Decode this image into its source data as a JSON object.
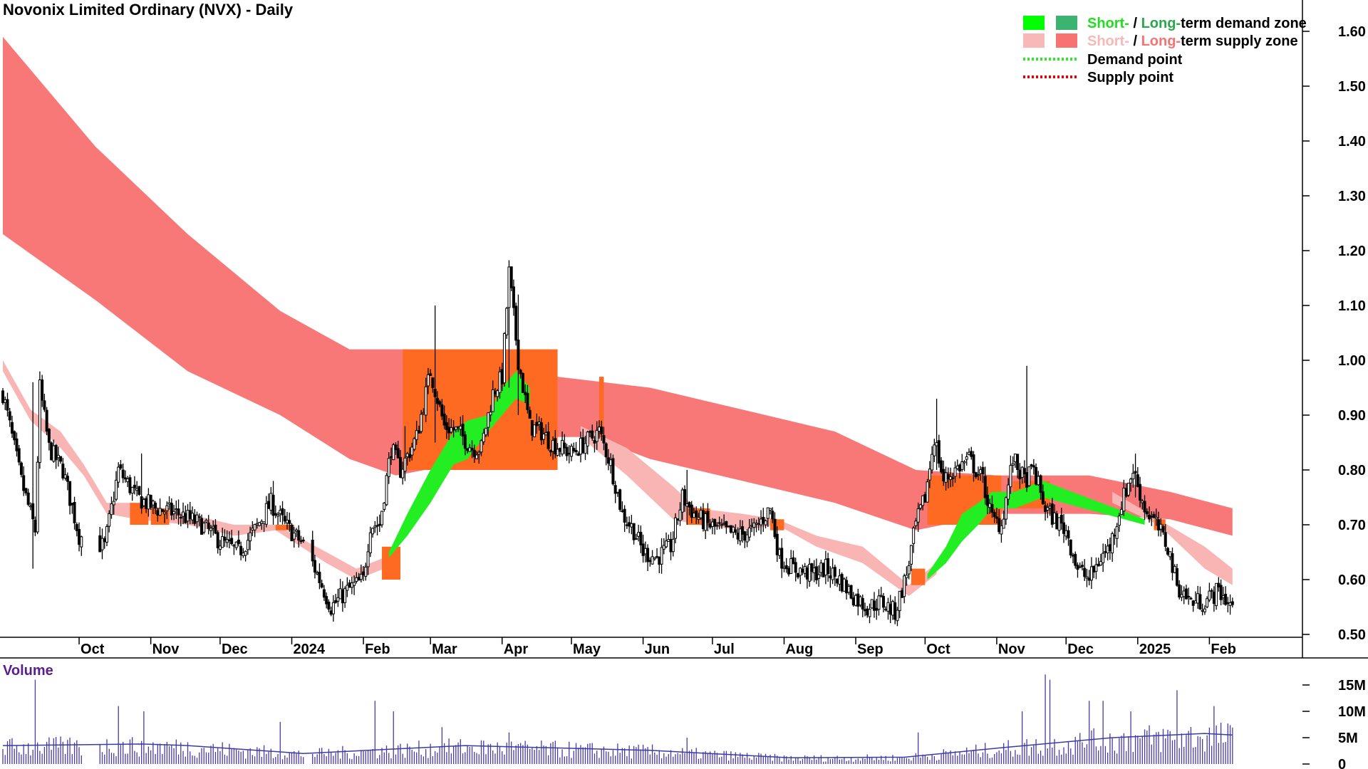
{
  "chart_data": {
    "type": "candlestick",
    "title": "Novonix Limited Ordinary (NVX) - Daily",
    "price_axis": {
      "ylim": [
        0.48,
        1.66
      ],
      "ticks": [
        1.6,
        1.5,
        1.4,
        1.3,
        1.2,
        1.1,
        1.0,
        0.9,
        0.8,
        0.7,
        0.6,
        0.5
      ],
      "tick_labels": [
        "1.60",
        "1.50",
        "1.40",
        "1.30",
        "1.20",
        "1.10",
        "1.00",
        "0.90",
        "0.80",
        "0.70",
        "0.60",
        "0.50"
      ]
    },
    "time_axis": {
      "labels": [
        {
          "label": "Oct",
          "d": 33
        },
        {
          "label": "Nov",
          "d": 64
        },
        {
          "label": "Dec",
          "d": 94
        },
        {
          "label": "2024",
          "d": 125
        },
        {
          "label": "Feb",
          "d": 156
        },
        {
          "label": "Mar",
          "d": 185
        },
        {
          "label": "Apr",
          "d": 216
        },
        {
          "label": "May",
          "d": 246
        },
        {
          "label": "Jun",
          "d": 277
        },
        {
          "label": "Jul",
          "d": 307
        },
        {
          "label": "Aug",
          "d": 338
        },
        {
          "label": "Sep",
          "d": 369
        },
        {
          "label": "Oct",
          "d": 399
        },
        {
          "label": "Nov",
          "d": 430
        },
        {
          "label": "Dec",
          "d": 460
        },
        {
          "label": "2025",
          "d": 491
        },
        {
          "label": "Feb",
          "d": 522
        }
      ],
      "d_range": [
        0,
        545
      ]
    },
    "price_keypoints": [
      [
        0,
        0.94
      ],
      [
        8,
        0.78
      ],
      [
        14,
        0.69
      ],
      [
        16,
        0.95
      ],
      [
        20,
        0.84
      ],
      [
        26,
        0.8
      ],
      [
        33,
        0.68
      ],
      [
        44,
        0.66
      ],
      [
        50,
        0.8
      ],
      [
        58,
        0.75
      ],
      [
        66,
        0.73
      ],
      [
        76,
        0.72
      ],
      [
        86,
        0.7
      ],
      [
        94,
        0.67
      ],
      [
        102,
        0.65
      ],
      [
        109,
        0.69
      ],
      [
        116,
        0.74
      ],
      [
        122,
        0.7
      ],
      [
        131,
        0.66
      ],
      [
        136,
        0.61
      ],
      [
        142,
        0.55
      ],
      [
        149,
        0.58
      ],
      [
        156,
        0.6
      ],
      [
        159,
        0.7
      ],
      [
        163,
        0.7
      ],
      [
        168,
        0.84
      ],
      [
        172,
        0.8
      ],
      [
        179,
        0.86
      ],
      [
        185,
        0.98
      ],
      [
        191,
        0.88
      ],
      [
        197,
        0.87
      ],
      [
        203,
        0.84
      ],
      [
        207,
        0.84
      ],
      [
        212,
        0.94
      ],
      [
        216,
        0.97
      ],
      [
        219,
        1.16
      ],
      [
        223,
        1.0
      ],
      [
        228,
        0.88
      ],
      [
        233,
        0.87
      ],
      [
        237,
        0.85
      ],
      [
        246,
        0.83
      ],
      [
        252,
        0.85
      ],
      [
        258,
        0.87
      ],
      [
        263,
        0.81
      ],
      [
        268,
        0.72
      ],
      [
        273,
        0.69
      ],
      [
        277,
        0.65
      ],
      [
        283,
        0.64
      ],
      [
        289,
        0.66
      ],
      [
        294,
        0.75
      ],
      [
        299,
        0.72
      ],
      [
        305,
        0.7
      ],
      [
        311,
        0.69
      ],
      [
        318,
        0.68
      ],
      [
        325,
        0.69
      ],
      [
        332,
        0.73
      ],
      [
        336,
        0.64
      ],
      [
        342,
        0.62
      ],
      [
        350,
        0.61
      ],
      [
        356,
        0.62
      ],
      [
        362,
        0.6
      ],
      [
        368,
        0.57
      ],
      [
        374,
        0.55
      ],
      [
        380,
        0.56
      ],
      [
        386,
        0.54
      ],
      [
        391,
        0.61
      ],
      [
        395,
        0.7
      ],
      [
        399,
        0.75
      ],
      [
        403,
        0.86
      ],
      [
        407,
        0.78
      ],
      [
        412,
        0.8
      ],
      [
        418,
        0.82
      ],
      [
        424,
        0.78
      ],
      [
        428,
        0.71
      ],
      [
        432,
        0.7
      ],
      [
        437,
        0.82
      ],
      [
        442,
        0.78
      ],
      [
        446,
        0.8
      ],
      [
        451,
        0.73
      ],
      [
        455,
        0.71
      ],
      [
        460,
        0.69
      ],
      [
        465,
        0.62
      ],
      [
        470,
        0.6
      ],
      [
        475,
        0.64
      ],
      [
        479,
        0.66
      ],
      [
        484,
        0.74
      ],
      [
        489,
        0.8
      ],
      [
        494,
        0.73
      ],
      [
        499,
        0.7
      ],
      [
        504,
        0.66
      ],
      [
        508,
        0.59
      ],
      [
        514,
        0.56
      ],
      [
        520,
        0.56
      ],
      [
        526,
        0.58
      ],
      [
        532,
        0.55
      ]
    ],
    "spikes": [
      [
        13,
        0.62,
        0.96
      ],
      [
        60,
        0.72,
        0.83
      ],
      [
        117,
        0.7,
        0.78
      ],
      [
        174,
        0.78,
        0.88
      ],
      [
        187,
        0.85,
        1.1
      ],
      [
        219,
        0.95,
        1.18
      ],
      [
        223,
        0.9,
        1.12
      ],
      [
        296,
        0.7,
        0.8
      ],
      [
        404,
        0.8,
        0.93
      ],
      [
        443,
        0.76,
        0.99
      ],
      [
        490,
        0.75,
        0.83
      ]
    ],
    "supply_zone_long": {
      "color": "#f87878",
      "upper": [
        [
          0,
          1.59
        ],
        [
          40,
          1.39
        ],
        [
          80,
          1.23
        ],
        [
          120,
          1.09
        ],
        [
          150,
          1.02
        ],
        [
          175,
          1.02
        ],
        [
          205,
          1.0
        ],
        [
          240,
          0.97
        ],
        [
          280,
          0.95
        ],
        [
          320,
          0.91
        ],
        [
          360,
          0.87
        ],
        [
          395,
          0.8
        ],
        [
          430,
          0.79
        ],
        [
          470,
          0.79
        ],
        [
          505,
          0.76
        ],
        [
          532,
          0.73
        ]
      ],
      "lower": [
        [
          0,
          1.23
        ],
        [
          40,
          1.11
        ],
        [
          80,
          0.98
        ],
        [
          120,
          0.9
        ],
        [
          150,
          0.82
        ],
        [
          170,
          0.79
        ],
        [
          195,
          0.81
        ],
        [
          225,
          0.86
        ],
        [
          255,
          0.86
        ],
        [
          280,
          0.82
        ],
        [
          320,
          0.78
        ],
        [
          360,
          0.74
        ],
        [
          395,
          0.69
        ],
        [
          430,
          0.72
        ],
        [
          470,
          0.72
        ],
        [
          505,
          0.71
        ],
        [
          532,
          0.68
        ]
      ]
    },
    "supply_zone_short": {
      "color": "#f9b4b4",
      "upper": [
        [
          0,
          1.0
        ],
        [
          12,
          0.91
        ],
        [
          25,
          0.87
        ],
        [
          35,
          0.81
        ],
        [
          45,
          0.74
        ],
        [
          58,
          0.74
        ],
        [
          80,
          0.72
        ],
        [
          100,
          0.7
        ],
        [
          118,
          0.7
        ],
        [
          140,
          0.65
        ],
        [
          153,
          0.62
        ],
        [
          165,
          0.64
        ],
        [
          250,
          0.88
        ],
        [
          270,
          0.84
        ],
        [
          290,
          0.77
        ],
        [
          300,
          0.73
        ],
        [
          320,
          0.72
        ],
        [
          335,
          0.71
        ],
        [
          352,
          0.68
        ],
        [
          372,
          0.66
        ],
        [
          392,
          0.59
        ],
        [
          404,
          0.63
        ],
        [
          480,
          0.76
        ],
        [
          500,
          0.71
        ],
        [
          520,
          0.66
        ],
        [
          532,
          0.62
        ]
      ],
      "lower": [
        [
          0,
          0.98
        ],
        [
          12,
          0.89
        ],
        [
          25,
          0.84
        ],
        [
          35,
          0.79
        ],
        [
          45,
          0.72
        ],
        [
          58,
          0.71
        ],
        [
          80,
          0.7
        ],
        [
          100,
          0.68
        ],
        [
          118,
          0.69
        ],
        [
          140,
          0.63
        ],
        [
          153,
          0.6
        ],
        [
          165,
          0.62
        ],
        [
          250,
          0.86
        ],
        [
          270,
          0.79
        ],
        [
          290,
          0.71
        ],
        [
          300,
          0.7
        ],
        [
          320,
          0.69
        ],
        [
          335,
          0.7
        ],
        [
          352,
          0.66
        ],
        [
          372,
          0.63
        ],
        [
          392,
          0.57
        ],
        [
          404,
          0.61
        ],
        [
          480,
          0.74
        ],
        [
          500,
          0.7
        ],
        [
          520,
          0.62
        ],
        [
          532,
          0.59
        ]
      ]
    },
    "overlap_zones": {
      "color": "#ff6a22",
      "blocks": [
        {
          "d0": 173,
          "d1": 240,
          "top": 1.02,
          "bot": 0.8
        },
        {
          "d0": 258,
          "d1": 260,
          "top": 0.97,
          "bot": 0.86
        },
        {
          "d0": 400,
          "d1": 432,
          "top": 0.79,
          "bot": 0.7
        },
        {
          "d0": 437,
          "d1": 453,
          "top": 0.78,
          "bot": 0.73
        },
        {
          "d0": 164,
          "d1": 172,
          "top": 0.66,
          "bot": 0.6
        }
      ],
      "strips": [
        [
          55,
          63,
          0.74,
          0.7
        ],
        [
          64,
          72,
          0.73,
          0.7
        ],
        [
          118,
          126,
          0.7,
          0.69
        ],
        [
          296,
          306,
          0.73,
          0.7
        ],
        [
          332,
          338,
          0.71,
          0.69
        ],
        [
          393,
          399,
          0.62,
          0.59
        ],
        [
          498,
          503,
          0.71,
          0.69
        ]
      ]
    },
    "demand_zone_short": {
      "color": "#22ee22",
      "upper": [
        [
          167,
          0.65
        ],
        [
          175,
          0.72
        ],
        [
          185,
          0.8
        ],
        [
          195,
          0.87
        ],
        [
          201,
          0.89
        ],
        [
          210,
          0.9
        ],
        [
          216,
          0.95
        ],
        [
          222,
          0.98
        ],
        [
          228,
          0.95
        ],
        [
          400,
          0.61
        ],
        [
          408,
          0.66
        ],
        [
          415,
          0.72
        ],
        [
          422,
          0.74
        ],
        [
          428,
          0.76
        ],
        [
          438,
          0.76
        ],
        [
          450,
          0.78
        ],
        [
          494,
          0.71
        ]
      ],
      "lower": [
        [
          167,
          0.64
        ],
        [
          175,
          0.68
        ],
        [
          185,
          0.74
        ],
        [
          195,
          0.81
        ],
        [
          201,
          0.82
        ],
        [
          210,
          0.87
        ],
        [
          216,
          0.9
        ],
        [
          222,
          0.93
        ],
        [
          228,
          0.92
        ],
        [
          400,
          0.6
        ],
        [
          408,
          0.63
        ],
        [
          415,
          0.67
        ],
        [
          422,
          0.7
        ],
        [
          428,
          0.73
        ],
        [
          438,
          0.73
        ],
        [
          450,
          0.75
        ],
        [
          494,
          0.7
        ]
      ]
    },
    "volume_axis": {
      "ylim": [
        0,
        20000000
      ],
      "ticks": [
        15000000,
        10000000,
        5000000,
        0
      ],
      "tick_labels": [
        "15M",
        "10M",
        "5M",
        "0"
      ]
    },
    "volume_title": "Volume",
    "volume_spikes": [
      [
        14,
        16000000
      ],
      [
        50,
        11000000
      ],
      [
        61,
        10000000
      ],
      [
        120,
        8000000
      ],
      [
        161,
        12000000
      ],
      [
        169,
        10000000
      ],
      [
        190,
        7000000
      ],
      [
        219,
        6000000
      ],
      [
        296,
        5000000
      ],
      [
        396,
        6000000
      ],
      [
        441,
        10000000
      ],
      [
        451,
        17000000
      ],
      [
        453,
        16000000
      ],
      [
        470,
        12000000
      ],
      [
        476,
        12000000
      ],
      [
        488,
        10000000
      ],
      [
        508,
        14000000
      ],
      [
        524,
        11000000
      ]
    ],
    "volume_avg": [
      [
        0,
        3500000
      ],
      [
        60,
        3800000
      ],
      [
        80,
        3500000
      ],
      [
        130,
        2000000
      ],
      [
        200,
        3500000
      ],
      [
        280,
        2600000
      ],
      [
        340,
        1200000
      ],
      [
        390,
        1300000
      ],
      [
        430,
        3000000
      ],
      [
        480,
        5000000
      ],
      [
        520,
        5800000
      ],
      [
        532,
        5500000
      ]
    ],
    "legend": [
      {
        "label_a": "Short-",
        "sep": " / ",
        "label_b": "Long-",
        "rest": "term demand zone",
        "swatch1": "#00ff00",
        "swatch2": "#3cb371",
        "color_a": "#22dd22",
        "color_b": "#2aa84a"
      },
      {
        "label_a": "Short-",
        "sep": " / ",
        "label_b": "Long-",
        "rest": "term supply zone",
        "swatch1": "#f8b8b8",
        "swatch2": "#f87272",
        "color_a": "#f8b8b8",
        "color_b": "#f87272"
      },
      {
        "label": "Demand point",
        "dot": "#22ee22"
      },
      {
        "label": "Supply point",
        "dot": "#ee0000"
      }
    ]
  }
}
